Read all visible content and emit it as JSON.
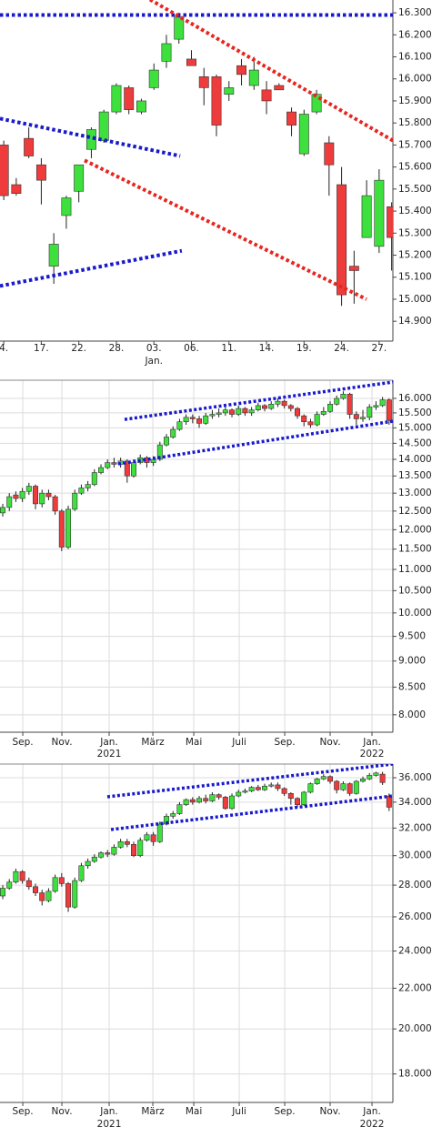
{
  "chart_data": [
    {
      "type": "candlestick",
      "log_scale": false,
      "grid": false,
      "up_color": "#3ee03e",
      "down_color": "#ee3b3b",
      "xlim": [
        -0.3,
        31.1
      ],
      "ylim": [
        14810,
        16358
      ],
      "yticks": [
        {
          "value": 14900,
          "label": "14.900"
        },
        {
          "value": 15000,
          "label": "15.000"
        },
        {
          "value": 15100,
          "label": "15.100"
        },
        {
          "value": 15200,
          "label": "15.200"
        },
        {
          "value": 15300,
          "label": "15.300"
        },
        {
          "value": 15400,
          "label": "15.400"
        },
        {
          "value": 15500,
          "label": "15.500"
        },
        {
          "value": 15600,
          "label": "15.600"
        },
        {
          "value": 15700,
          "label": "15.700"
        },
        {
          "value": 15800,
          "label": "15.800"
        },
        {
          "value": 15900,
          "label": "15.900"
        },
        {
          "value": 16000,
          "label": "16.000"
        },
        {
          "value": 16100,
          "label": "16.100"
        },
        {
          "value": 16200,
          "label": "16.200"
        },
        {
          "value": 16300,
          "label": "16.300"
        }
      ],
      "xticks": [
        {
          "value": 0,
          "label": "4."
        },
        {
          "value": 3,
          "label": "17."
        },
        {
          "value": 6,
          "label": "22."
        },
        {
          "value": 9,
          "label": "28."
        },
        {
          "value": 12,
          "label": "03."
        },
        {
          "value": 15,
          "label": "06."
        },
        {
          "value": 18,
          "label": "11."
        },
        {
          "value": 21,
          "label": "14."
        },
        {
          "value": 24,
          "label": "19."
        },
        {
          "value": 27,
          "label": "24."
        },
        {
          "value": 30,
          "label": "27."
        }
      ],
      "xticks2": [
        {
          "value": 12,
          "label": "Jan."
        }
      ],
      "open": [
        15700,
        15520,
        15730,
        15610,
        15150,
        15380,
        15490,
        15680,
        15720,
        15850,
        15960,
        15850,
        15960,
        16080,
        16180,
        16090,
        16010,
        16010,
        15930,
        16060,
        15970,
        15950,
        15970,
        15850,
        15660,
        15850,
        15710,
        15520,
        15150,
        15280,
        15240,
        15420
      ],
      "high": [
        15720,
        15550,
        15780,
        15640,
        15300,
        15470,
        15610,
        15780,
        15860,
        15980,
        15970,
        15910,
        16070,
        16200,
        16300,
        16130,
        16050,
        16020,
        15990,
        16090,
        16100,
        15990,
        15980,
        15870,
        15860,
        15950,
        15740,
        15600,
        15220,
        15540,
        15590,
        15440
      ],
      "low": [
        15450,
        15470,
        15640,
        15430,
        15070,
        15320,
        15440,
        15640,
        15710,
        15840,
        15840,
        15840,
        15950,
        16050,
        16160,
        16060,
        15880,
        15740,
        15900,
        15970,
        15950,
        15840,
        15950,
        15740,
        15650,
        15840,
        15470,
        14970,
        14980,
        15280,
        15210,
        15130
      ],
      "close": [
        15470,
        15480,
        15650,
        15540,
        15250,
        15460,
        15610,
        15770,
        15850,
        15970,
        15860,
        15900,
        16040,
        16160,
        16280,
        16060,
        15960,
        15790,
        15960,
        16020,
        16040,
        15900,
        15950,
        15790,
        15840,
        15930,
        15610,
        15020,
        15130,
        15470,
        15540,
        15280
      ],
      "trendlines": [
        {
          "color": "#1a1acc",
          "x": [
            -0.3,
            31.1
          ],
          "y": [
            16290,
            16290
          ]
        },
        {
          "color": "#1a1acc",
          "x": [
            -0.3,
            14.1
          ],
          "y": [
            15820,
            15650
          ]
        },
        {
          "color": "#1a1acc",
          "x": [
            -0.3,
            14.23
          ],
          "y": [
            15060,
            15220
          ]
        },
        {
          "color": "#e8251f",
          "x": [
            11.69,
            31.1
          ],
          "y": [
            16360,
            15720
          ]
        },
        {
          "color": "#e8251f",
          "x": [
            6.46,
            28.99
          ],
          "y": [
            15630,
            15000
          ]
        }
      ]
    },
    {
      "type": "candlestick",
      "log_scale": true,
      "grid": true,
      "up_color": "#3ee03e",
      "down_color": "#ee3b3b",
      "xlim": [
        -0.42,
        59.58
      ],
      "ylim": [
        7700,
        16650
      ],
      "yticks": [
        {
          "value": 8000,
          "label": "8.000"
        },
        {
          "value": 8500,
          "label": "8.500"
        },
        {
          "value": 9000,
          "label": "9.000"
        },
        {
          "value": 9500,
          "label": "9.500"
        },
        {
          "value": 10000,
          "label": "10.000"
        },
        {
          "value": 10500,
          "label": "10.500"
        },
        {
          "value": 11000,
          "label": "11.000"
        },
        {
          "value": 11500,
          "label": "11.500"
        },
        {
          "value": 12000,
          "label": "12.000"
        },
        {
          "value": 12500,
          "label": "12.500"
        },
        {
          "value": 13000,
          "label": "13.000"
        },
        {
          "value": 13500,
          "label": "13.500"
        },
        {
          "value": 14000,
          "label": "14.000"
        },
        {
          "value": 14500,
          "label": "14.500"
        },
        {
          "value": 15000,
          "label": "15.000"
        },
        {
          "value": 15500,
          "label": "15.500"
        },
        {
          "value": 16000,
          "label": "16.000"
        }
      ],
      "xticks": [
        {
          "value": 3.06,
          "label": "Sep."
        },
        {
          "value": 9.03,
          "label": "Nov."
        },
        {
          "value": 16.25,
          "label": "Jan."
        },
        {
          "value": 22.92,
          "label": "März"
        },
        {
          "value": 29.17,
          "label": "Mai"
        },
        {
          "value": 36.11,
          "label": "Juli"
        },
        {
          "value": 43.06,
          "label": "Sep."
        },
        {
          "value": 50,
          "label": "Nov."
        },
        {
          "value": 56.39,
          "label": "Jan."
        }
      ],
      "xticks2": [
        {
          "value": 16.25,
          "label": "2021"
        },
        {
          "value": 56.39,
          "label": "2022"
        }
      ],
      "open": [
        12450,
        12600,
        12950,
        12850,
        13050,
        13200,
        12700,
        13000,
        12900,
        12500,
        11550,
        12550,
        13000,
        13150,
        13250,
        13600,
        13750,
        13900,
        13850,
        13950,
        13500,
        13900,
        14050,
        13900,
        14000,
        14450,
        14700,
        14950,
        15200,
        15350,
        15300,
        15150,
        15400,
        15450,
        15500,
        15600,
        15450,
        15650,
        15500,
        15600,
        15750,
        15650,
        15800,
        15900,
        15750,
        15650,
        15400,
        15200,
        15100,
        15450,
        15550,
        15800,
        16000,
        16150,
        15450,
        15300,
        15350,
        15700,
        15750,
        15950
      ],
      "high": [
        12700,
        13000,
        13050,
        13150,
        13300,
        13250,
        13100,
        13100,
        12950,
        12550,
        12650,
        13100,
        13250,
        13350,
        13700,
        13850,
        14000,
        14050,
        14050,
        14000,
        14000,
        14150,
        14100,
        14100,
        14550,
        14800,
        15050,
        15300,
        15450,
        15450,
        15400,
        15500,
        15600,
        15650,
        15700,
        15650,
        15750,
        15700,
        15700,
        15850,
        15800,
        15900,
        16000,
        15950,
        15800,
        15700,
        15450,
        15300,
        15550,
        15700,
        15900,
        16100,
        16250,
        16200,
        15550,
        15600,
        15800,
        15900,
        16050,
        16000
      ],
      "low": [
        12350,
        12500,
        12750,
        12750,
        12950,
        12550,
        12600,
        12800,
        12400,
        11450,
        11500,
        12500,
        12950,
        13050,
        13200,
        13550,
        13700,
        13750,
        13750,
        13300,
        13450,
        13850,
        13750,
        13800,
        13950,
        14400,
        14650,
        14900,
        15100,
        15150,
        15000,
        15100,
        15300,
        15350,
        15400,
        15350,
        15400,
        15400,
        15400,
        15550,
        15550,
        15600,
        15700,
        15650,
        15550,
        15300,
        15050,
        15000,
        15050,
        15400,
        15500,
        15750,
        15950,
        15300,
        15100,
        15200,
        15250,
        15600,
        15700,
        15100
      ],
      "close": [
        12600,
        12900,
        12850,
        13050,
        13200,
        12700,
        13000,
        12900,
        12500,
        11550,
        12550,
        13000,
        13150,
        13250,
        13600,
        13750,
        13900,
        13850,
        13950,
        13500,
        13900,
        14050,
        13900,
        14000,
        14450,
        14700,
        14950,
        15200,
        15350,
        15300,
        15150,
        15400,
        15450,
        15500,
        15600,
        15450,
        15650,
        15500,
        15600,
        15750,
        15650,
        15800,
        15900,
        15750,
        15650,
        15400,
        15200,
        15100,
        15450,
        15550,
        15800,
        16000,
        16150,
        15450,
        15300,
        15350,
        15700,
        15750,
        15950,
        15250
      ],
      "trendlines": [
        {
          "color": "#1a1acc",
          "x": [
            18.61,
            60.69
          ],
          "y": [
            15280,
            16620
          ]
        },
        {
          "color": "#1a1acc",
          "x": [
            17.64,
            59.58
          ],
          "y": [
            13860,
            15220
          ]
        }
      ]
    },
    {
      "type": "candlestick",
      "log_scale": true,
      "grid": true,
      "up_color": "#3ee03e",
      "down_color": "#ee3b3b",
      "xlim": [
        -0.42,
        59.58
      ],
      "ylim": [
        16840,
        37170
      ],
      "yticks": [
        {
          "value": 18000,
          "label": "18.000"
        },
        {
          "value": 20000,
          "label": "20.000"
        },
        {
          "value": 22000,
          "label": "22.000"
        },
        {
          "value": 24000,
          "label": "24.000"
        },
        {
          "value": 26000,
          "label": "26.000"
        },
        {
          "value": 28000,
          "label": "28.000"
        },
        {
          "value": 30000,
          "label": "30.000"
        },
        {
          "value": 32000,
          "label": "32.000"
        },
        {
          "value": 34000,
          "label": "34.000"
        },
        {
          "value": 36000,
          "label": "36.000"
        }
      ],
      "xticks": [
        {
          "value": 3.06,
          "label": "Sep."
        },
        {
          "value": 9.03,
          "label": "Nov."
        },
        {
          "value": 16.25,
          "label": "Jan."
        },
        {
          "value": 22.92,
          "label": "März"
        },
        {
          "value": 29.17,
          "label": "Mai"
        },
        {
          "value": 36.11,
          "label": "Juli"
        },
        {
          "value": 43.06,
          "label": "Sep."
        },
        {
          "value": 50,
          "label": "Nov."
        },
        {
          "value": 56.39,
          "label": "Jan."
        }
      ],
      "xticks2": [
        {
          "value": 16.25,
          "label": "2021"
        },
        {
          "value": 56.39,
          "label": "2022"
        }
      ],
      "open": [
        27300,
        27800,
        28200,
        28900,
        28300,
        27900,
        27500,
        27000,
        27600,
        28500,
        28100,
        26600,
        28300,
        29300,
        29600,
        29900,
        30200,
        30100,
        30600,
        31000,
        30800,
        30000,
        31100,
        31500,
        31000,
        32300,
        32900,
        33100,
        33800,
        34200,
        34000,
        34300,
        34100,
        34600,
        34400,
        33500,
        34500,
        34800,
        34900,
        35200,
        35000,
        35300,
        35400,
        35100,
        34700,
        34300,
        33800,
        34800,
        35500,
        35900,
        36100,
        35700,
        35000,
        35500,
        34700,
        35700,
        35900,
        36200,
        36300,
        34500
      ],
      "high": [
        28000,
        28400,
        29100,
        29000,
        28500,
        28100,
        27700,
        27800,
        28700,
        28800,
        28200,
        28500,
        29500,
        29800,
        30100,
        30300,
        30400,
        30800,
        31200,
        31200,
        31000,
        31300,
        31700,
        31700,
        32500,
        33100,
        33300,
        34000,
        34300,
        34400,
        34500,
        34600,
        34800,
        34700,
        34500,
        34700,
        35000,
        35100,
        35300,
        35400,
        35500,
        35600,
        35600,
        35200,
        34800,
        34400,
        34900,
        35600,
        36000,
        36300,
        36200,
        35800,
        35700,
        35600,
        35800,
        36100,
        36400,
        36500,
        36500,
        34700
      ],
      "low": [
        27100,
        27700,
        28100,
        28100,
        27700,
        27300,
        26700,
        26900,
        27500,
        27900,
        26300,
        26500,
        28200,
        29100,
        29500,
        29800,
        29900,
        30000,
        30500,
        30600,
        29900,
        29900,
        31000,
        30700,
        30900,
        32200,
        32700,
        33000,
        33700,
        33800,
        33900,
        33900,
        34000,
        34200,
        33400,
        33400,
        34400,
        34700,
        34800,
        34900,
        34900,
        35200,
        34900,
        34500,
        33800,
        33600,
        33700,
        34700,
        35400,
        35800,
        35500,
        34700,
        34900,
        34500,
        34600,
        35600,
        35800,
        36100,
        35400,
        33300
      ],
      "close": [
        27800,
        28200,
        28900,
        28300,
        27900,
        27500,
        27000,
        27600,
        28500,
        28100,
        26600,
        28300,
        29300,
        29600,
        29900,
        30200,
        30100,
        30600,
        31000,
        30800,
        30000,
        31100,
        31500,
        31000,
        32300,
        32900,
        33100,
        33800,
        34200,
        34000,
        34300,
        34100,
        34600,
        34400,
        33500,
        34500,
        34800,
        34900,
        35200,
        35000,
        35300,
        35400,
        35100,
        34700,
        34300,
        33800,
        34800,
        35500,
        35900,
        36100,
        35700,
        35000,
        35500,
        34700,
        35700,
        35900,
        36200,
        36400,
        35600,
        33600
      ],
      "trendlines": [
        {
          "color": "#1a1acc",
          "x": [
            15.97,
            59.58
          ],
          "y": [
            34430,
            37170
          ]
        },
        {
          "color": "#1a1acc",
          "x": [
            16.53,
            59.58
          ],
          "y": [
            31890,
            34500
          ]
        }
      ]
    }
  ]
}
